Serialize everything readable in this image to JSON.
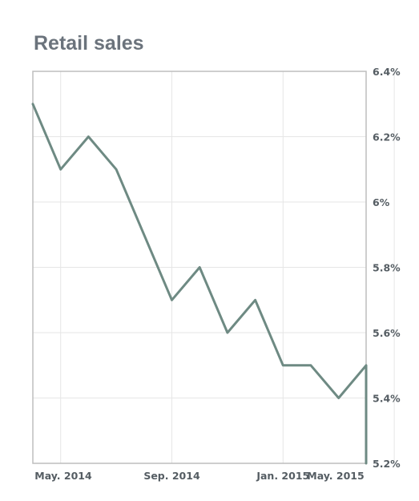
{
  "chart_data": {
    "type": "line",
    "title": "Retail sales",
    "xlabel": "",
    "ylabel": "",
    "ylim": [
      5.2,
      6.4
    ],
    "y_axis_position": "right",
    "y_ticks": [
      6.4,
      6.2,
      6.0,
      5.8,
      5.6,
      5.4,
      5.2
    ],
    "y_tick_labels": [
      "6.4%",
      "6.2%",
      "6%",
      "5.8%",
      "5.6%",
      "5.4%",
      "5.2%"
    ],
    "x_ticks": [
      {
        "label": "May. 2014",
        "month_index": 0
      },
      {
        "label": "Sep. 2014",
        "month_index": 4
      },
      {
        "label": "Jan. 2015",
        "month_index": 8
      },
      {
        "label": "May. 2015",
        "month_index": 12
      }
    ],
    "grid": true,
    "legend": "none",
    "line_color": "#6e8a83",
    "series": [
      {
        "x": [
          "2014-04",
          "2014-05",
          "2014-06",
          "2014-07",
          "2014-08",
          "2014-09",
          "2014-10",
          "2014-11",
          "2014-12",
          "2015-01",
          "2015-02",
          "2015-03",
          "2015-04",
          "2015-05"
        ],
        "values": [
          6.3,
          6.1,
          6.2,
          6.1,
          5.9,
          5.7,
          5.8,
          5.6,
          5.7,
          5.5,
          5.5,
          5.4,
          5.5,
          5.2
        ]
      }
    ]
  }
}
